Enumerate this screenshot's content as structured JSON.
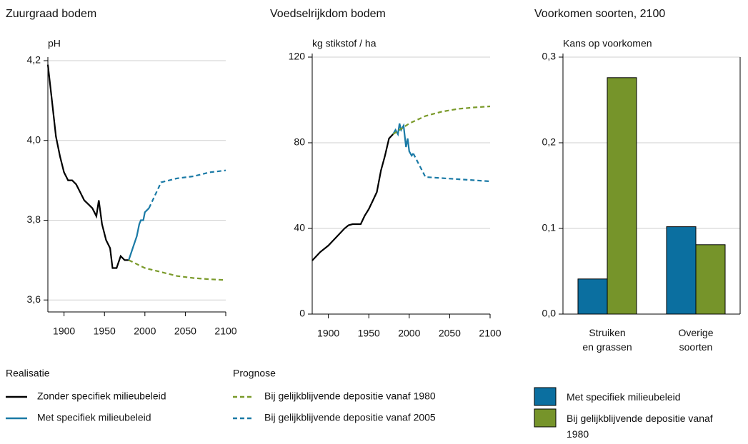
{
  "chart_data": [
    {
      "type": "line",
      "title": "Zuurgraad bodem",
      "y_label": "pH",
      "xlim": [
        1880,
        2100
      ],
      "xticks": [
        1900,
        1950,
        2000,
        2050,
        2100
      ],
      "ylim": [
        3.57,
        4.2
      ],
      "yticks": [
        {
          "value": 3.6,
          "label": "3,6"
        },
        {
          "value": 3.8,
          "label": "3,8"
        },
        {
          "value": 4.0,
          "label": "4,0"
        },
        {
          "value": 4.2,
          "label": "4,2"
        }
      ],
      "grid": true,
      "series": [
        {
          "name": "Zonder specifiek milieubeleid",
          "color": "#000000",
          "dashed": false,
          "x": [
            1880,
            1885,
            1890,
            1895,
            1900,
            1905,
            1910,
            1915,
            1920,
            1925,
            1930,
            1935,
            1940,
            1943,
            1947,
            1952,
            1957,
            1960,
            1965,
            1970,
            1975,
            1980
          ],
          "values": [
            4.19,
            4.1,
            4.01,
            3.96,
            3.92,
            3.9,
            3.9,
            3.89,
            3.87,
            3.85,
            3.84,
            3.83,
            3.81,
            3.85,
            3.79,
            3.75,
            3.73,
            3.68,
            3.68,
            3.71,
            3.7,
            3.7
          ]
        },
        {
          "name": "Met specifiek milieubeleid",
          "color": "#1a7aa6",
          "dashed": false,
          "x": [
            1980,
            1985,
            1990,
            1993,
            1995,
            1998,
            2000,
            2005
          ],
          "values": [
            3.7,
            3.73,
            3.76,
            3.79,
            3.8,
            3.8,
            3.82,
            3.83
          ]
        },
        {
          "name": "Bij gelijkblijvende depositie vanaf 1980",
          "color": "#7a9a2a",
          "dashed": true,
          "x": [
            1980,
            2000,
            2020,
            2040,
            2060,
            2080,
            2100
          ],
          "values": [
            3.7,
            3.68,
            3.67,
            3.66,
            3.655,
            3.652,
            3.65
          ]
        },
        {
          "name": "Bij gelijkblijvende depositie vanaf 2005",
          "color": "#1a7aa6",
          "dashed": true,
          "x": [
            2005,
            2020,
            2040,
            2060,
            2080,
            2100
          ],
          "values": [
            3.83,
            3.895,
            3.905,
            3.91,
            3.92,
            3.925
          ]
        }
      ]
    },
    {
      "type": "line",
      "title": "Voedselrijkdom bodem",
      "y_label": "kg stikstof / ha",
      "xlim": [
        1880,
        2100
      ],
      "xticks": [
        1900,
        1950,
        2000,
        2050,
        2100
      ],
      "ylim": [
        0,
        120
      ],
      "yticks": [
        0,
        40,
        80,
        120
      ],
      "grid": true,
      "series": [
        {
          "color": "#000000",
          "dashed": false,
          "x": [
            1880,
            1890,
            1900,
            1905,
            1910,
            1920,
            1925,
            1930,
            1940,
            1945,
            1950,
            1955,
            1960,
            1965,
            1970,
            1975,
            1980
          ],
          "values": [
            25,
            29,
            32,
            34,
            36,
            40,
            41.5,
            42,
            42,
            46,
            49,
            53,
            57,
            67,
            74,
            82,
            84
          ]
        },
        {
          "color": "#1a7aa6",
          "dashed": false,
          "x": [
            1980,
            1983,
            1986,
            1988,
            1990,
            1993,
            1996,
            1998,
            2000,
            2003,
            2005
          ],
          "values": [
            84,
            86,
            84,
            89,
            86,
            88,
            78,
            82,
            76,
            74,
            75
          ]
        },
        {
          "color": "#7a9a2a",
          "dashed": true,
          "x": [
            1980,
            2000,
            2020,
            2040,
            2060,
            2080,
            2100
          ],
          "values": [
            84,
            89,
            92.5,
            94.5,
            95.8,
            96.5,
            97
          ]
        },
        {
          "color": "#1a7aa6",
          "dashed": true,
          "x": [
            2005,
            2020,
            2040,
            2060,
            2080,
            2100
          ],
          "values": [
            75,
            64,
            63.5,
            63,
            62.5,
            62
          ]
        }
      ]
    },
    {
      "type": "bar",
      "title": "Voorkomen soorten, 2100",
      "y_label": "Kans op voorkomen",
      "categories": [
        "Struiken en grassen",
        "Overige soorten"
      ],
      "ylim": [
        0,
        0.3
      ],
      "yticks": [
        {
          "value": 0,
          "label": "0,0"
        },
        {
          "value": 0.1,
          "label": "0,1"
        },
        {
          "value": 0.2,
          "label": "0,2"
        },
        {
          "value": 0.3,
          "label": "0,3"
        }
      ],
      "grid": true,
      "series": [
        {
          "name": "Met specifiek milieubeleid",
          "color": "#0b6fa0",
          "values": [
            0.041,
            0.102
          ]
        },
        {
          "name": "Bij gelijkblijvende depositie vanaf 1980",
          "color": "#76942a",
          "values": [
            0.276,
            0.081
          ]
        }
      ]
    }
  ],
  "legend_titles": [
    "Realisatie",
    "Prognose"
  ]
}
